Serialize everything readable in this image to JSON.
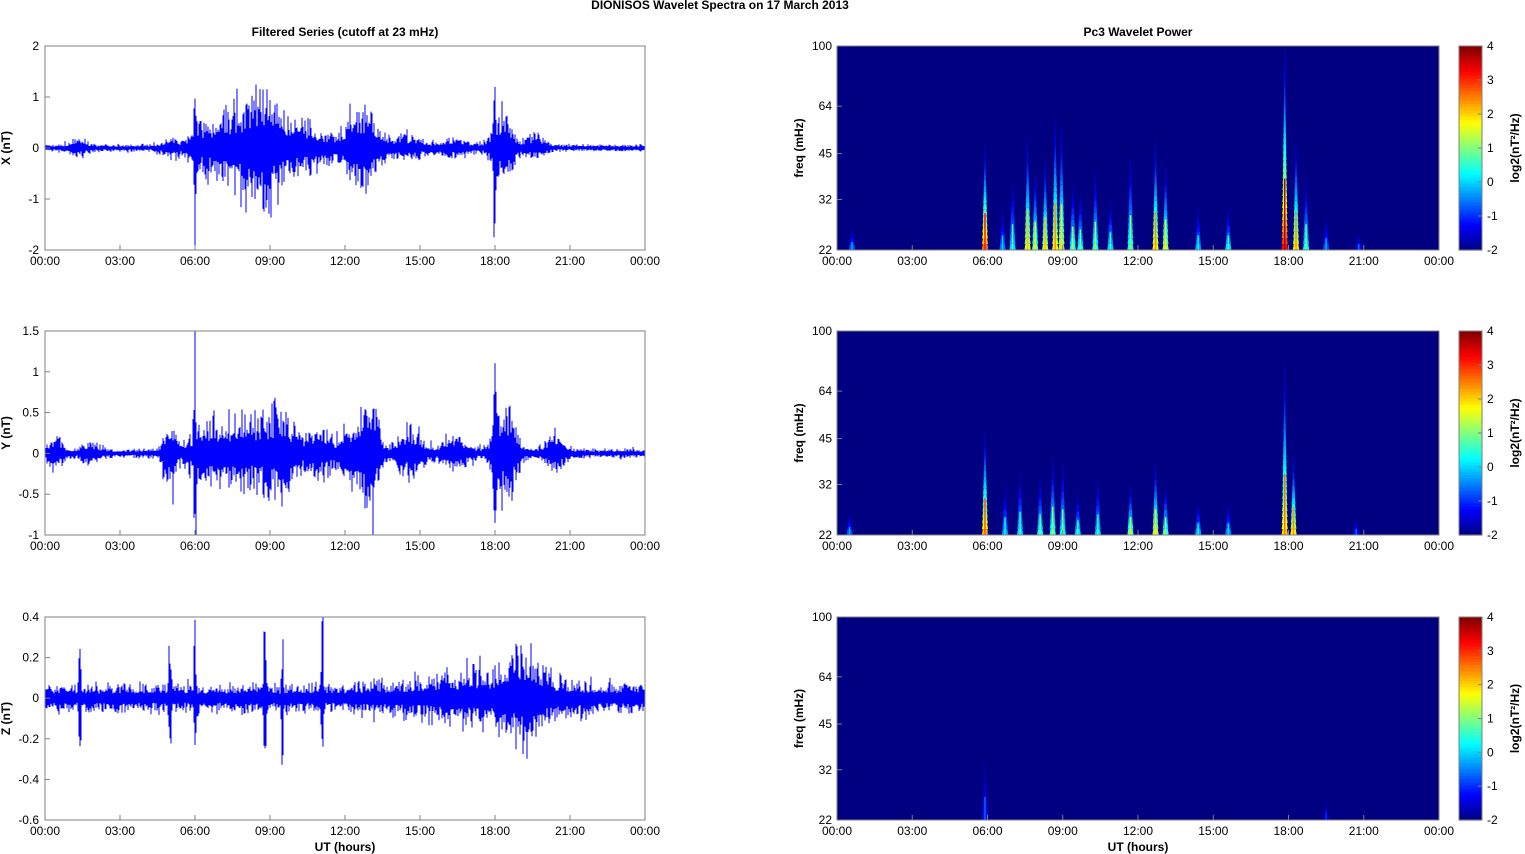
{
  "figure": {
    "title": "DIONISOS Wavelet Spectra on 17 March     2013"
  },
  "chart_data": [
    {
      "type": "line",
      "title": "Filtered Series (cutoff at 23 mHz)",
      "ylabel": "X (nT)",
      "xlabel": "",
      "color": "#0000ff",
      "xlim": [
        "00:00",
        "24:00"
      ],
      "xticks": [
        "00:00",
        "03:00",
        "06:00",
        "09:00",
        "12:00",
        "15:00",
        "18:00",
        "21:00",
        "00:00"
      ],
      "ylim": [
        -2,
        2
      ],
      "yticks": [
        "2",
        "1",
        "0",
        "-1",
        "-2"
      ],
      "yticks_values": [
        2,
        1,
        0,
        -1,
        -2
      ],
      "noise_floor": 0.05,
      "activity": [
        {
          "t": 1.3,
          "w": 0.4,
          "amp": 0.1
        },
        {
          "t": 5.0,
          "w": 0.4,
          "amp": 0.12
        },
        {
          "t": 6.0,
          "w": 0.05,
          "amp": 1.35
        },
        {
          "t": 6.3,
          "w": 0.6,
          "amp": 0.3
        },
        {
          "t": 7.6,
          "w": 0.8,
          "amp": 0.55
        },
        {
          "t": 8.7,
          "w": 0.6,
          "amp": 0.7
        },
        {
          "t": 9.5,
          "w": 0.8,
          "amp": 0.35
        },
        {
          "t": 10.7,
          "w": 0.9,
          "amp": 0.25
        },
        {
          "t": 12.4,
          "w": 0.6,
          "amp": 0.45
        },
        {
          "t": 13.1,
          "w": 0.5,
          "amp": 0.35
        },
        {
          "t": 14.5,
          "w": 0.8,
          "amp": 0.15
        },
        {
          "t": 16.4,
          "w": 0.6,
          "amp": 0.12
        },
        {
          "t": 17.98,
          "w": 0.05,
          "amp": 1.95
        },
        {
          "t": 18.3,
          "w": 0.5,
          "amp": 0.5
        },
        {
          "t": 19.6,
          "w": 0.5,
          "amp": 0.12
        }
      ]
    },
    {
      "type": "heatmap",
      "title": "Pc3 Wavelet Power",
      "ylabel": "freq (mHz)",
      "xlabel": "",
      "xlim": [
        "00:00",
        "24:00"
      ],
      "xticks": [
        "00:00",
        "03:00",
        "06:00",
        "09:00",
        "12:00",
        "15:00",
        "18:00",
        "21:00",
        "00:00"
      ],
      "ylim": [
        22,
        100
      ],
      "yscale": "log",
      "yticks": [
        "100",
        "64",
        "45",
        "32",
        "22"
      ],
      "yticks_values": [
        100,
        64,
        45,
        32,
        22
      ],
      "colorbar_label": "log2(nT²/Hz)",
      "colorbar_ticks": [
        "4",
        "3",
        "2",
        "1",
        "0",
        "-1",
        "-2"
      ],
      "colorbar_ticks_values": [
        4,
        3,
        2,
        1,
        0,
        -1,
        -2
      ],
      "clim": [
        -2,
        4
      ],
      "colormap": "jet",
      "background_value": -2,
      "bursts": [
        {
          "t": 0.6,
          "top": 26,
          "peak": -0.8
        },
        {
          "t": 5.9,
          "top": 48,
          "peak": 2.6
        },
        {
          "t": 6.6,
          "top": 30,
          "peak": -0.6
        },
        {
          "t": 7.0,
          "top": 38,
          "peak": 0.0
        },
        {
          "t": 7.6,
          "top": 52,
          "peak": 1.5
        },
        {
          "t": 7.9,
          "top": 40,
          "peak": 1.0
        },
        {
          "t": 8.3,
          "top": 44,
          "peak": 1.5
        },
        {
          "t": 8.7,
          "top": 60,
          "peak": 1.8
        },
        {
          "t": 8.95,
          "top": 58,
          "peak": 1.3
        },
        {
          "t": 9.4,
          "top": 36,
          "peak": 0.5
        },
        {
          "t": 9.7,
          "top": 34,
          "peak": 0.3
        },
        {
          "t": 10.3,
          "top": 40,
          "peak": 0.5
        },
        {
          "t": 10.9,
          "top": 32,
          "peak": 0.0
        },
        {
          "t": 11.7,
          "top": 46,
          "peak": 0.5
        },
        {
          "t": 12.7,
          "top": 50,
          "peak": 1.8
        },
        {
          "t": 13.1,
          "top": 42,
          "peak": 1.2
        },
        {
          "t": 14.4,
          "top": 30,
          "peak": -0.3
        },
        {
          "t": 15.6,
          "top": 30,
          "peak": 0.0
        },
        {
          "t": 17.85,
          "top": 100,
          "peak": 3.2
        },
        {
          "t": 18.3,
          "top": 50,
          "peak": 1.8
        },
        {
          "t": 18.7,
          "top": 38,
          "peak": 0.3
        },
        {
          "t": 19.5,
          "top": 28,
          "peak": -0.8
        },
        {
          "t": 20.8,
          "top": 25,
          "peak": -1.2
        }
      ]
    },
    {
      "type": "line",
      "title": "",
      "ylabel": "Y (nT)",
      "xlabel": "",
      "color": "#0000ff",
      "xlim": [
        "00:00",
        "24:00"
      ],
      "xticks": [
        "00:00",
        "03:00",
        "06:00",
        "09:00",
        "12:00",
        "15:00",
        "18:00",
        "21:00",
        "00:00"
      ],
      "ylim": [
        -1,
        1.5
      ],
      "yticks": [
        "1.5",
        "1",
        "0.5",
        "0",
        "-0.5",
        "-1"
      ],
      "yticks_values": [
        1.5,
        1,
        0.5,
        0,
        -0.5,
        -1
      ],
      "noise_floor": 0.04,
      "activity": [
        {
          "t": 0.4,
          "w": 0.4,
          "amp": 0.12
        },
        {
          "t": 1.8,
          "w": 0.4,
          "amp": 0.08
        },
        {
          "t": 5.0,
          "w": 0.3,
          "amp": 0.3
        },
        {
          "t": 6.0,
          "w": 0.05,
          "amp": 1.05
        },
        {
          "t": 6.4,
          "w": 0.7,
          "amp": 0.25
        },
        {
          "t": 7.8,
          "w": 1.0,
          "amp": 0.3
        },
        {
          "t": 9.4,
          "w": 0.8,
          "amp": 0.35
        },
        {
          "t": 11.0,
          "w": 0.6,
          "amp": 0.2
        },
        {
          "t": 12.4,
          "w": 0.6,
          "amp": 0.25
        },
        {
          "t": 13.0,
          "w": 0.4,
          "amp": 0.5
        },
        {
          "t": 14.6,
          "w": 0.6,
          "amp": 0.2
        },
        {
          "t": 16.4,
          "w": 0.6,
          "amp": 0.15
        },
        {
          "t": 17.98,
          "w": 0.05,
          "amp": 0.75
        },
        {
          "t": 18.4,
          "w": 0.5,
          "amp": 0.45
        },
        {
          "t": 20.4,
          "w": 0.5,
          "amp": 0.15
        }
      ]
    },
    {
      "type": "heatmap",
      "title": "",
      "ylabel": "freq (mHz)",
      "xlabel": "",
      "xlim": [
        "00:00",
        "24:00"
      ],
      "xticks": [
        "00:00",
        "03:00",
        "06:00",
        "09:00",
        "12:00",
        "15:00",
        "18:00",
        "21:00",
        "00:00"
      ],
      "ylim": [
        22,
        100
      ],
      "yscale": "log",
      "yticks": [
        "100",
        "64",
        "45",
        "32",
        "22"
      ],
      "yticks_values": [
        100,
        64,
        45,
        32,
        22
      ],
      "colorbar_label": "log2(nT²/Hz)",
      "colorbar_ticks": [
        "4",
        "3",
        "2",
        "1",
        "0",
        "-1",
        "-2"
      ],
      "colorbar_ticks_values": [
        4,
        3,
        2,
        1,
        0,
        -1,
        -2
      ],
      "clim": [
        -2,
        4
      ],
      "colormap": "jet",
      "background_value": -2,
      "bursts": [
        {
          "t": 0.5,
          "top": 26,
          "peak": -0.8
        },
        {
          "t": 5.9,
          "top": 48,
          "peak": 2.2
        },
        {
          "t": 6.7,
          "top": 32,
          "peak": -0.3
        },
        {
          "t": 7.3,
          "top": 36,
          "peak": 0.0
        },
        {
          "t": 8.1,
          "top": 34,
          "peak": 0.3
        },
        {
          "t": 8.6,
          "top": 40,
          "peak": 0.5
        },
        {
          "t": 9.0,
          "top": 38,
          "peak": 0.3
        },
        {
          "t": 9.6,
          "top": 30,
          "peak": 0.0
        },
        {
          "t": 10.4,
          "top": 34,
          "peak": 0.0
        },
        {
          "t": 11.7,
          "top": 32,
          "peak": 0.8
        },
        {
          "t": 12.7,
          "top": 38,
          "peak": 1.3
        },
        {
          "t": 13.1,
          "top": 32,
          "peak": 0.5
        },
        {
          "t": 14.4,
          "top": 28,
          "peak": -0.3
        },
        {
          "t": 15.6,
          "top": 28,
          "peak": -0.5
        },
        {
          "t": 17.85,
          "top": 80,
          "peak": 2.0
        },
        {
          "t": 18.2,
          "top": 40,
          "peak": 1.8
        },
        {
          "t": 20.7,
          "top": 25,
          "peak": -1.2
        }
      ]
    },
    {
      "type": "line",
      "title": "",
      "ylabel": "Z (nT)",
      "xlabel": "UT (hours)",
      "color": "#0000ff",
      "xlim": [
        "00:00",
        "24:00"
      ],
      "xticks": [
        "00:00",
        "03:00",
        "06:00",
        "09:00",
        "12:00",
        "15:00",
        "18:00",
        "21:00",
        "00:00"
      ],
      "ylim": [
        -0.6,
        0.4
      ],
      "yticks": [
        "0.4",
        "0.2",
        "0",
        "-0.2",
        "-0.4",
        "-0.6"
      ],
      "yticks_values": [
        0.4,
        0.2,
        0,
        -0.2,
        -0.4,
        -0.6
      ],
      "noise_floor": 0.05,
      "activity": [
        {
          "t": 1.4,
          "w": 0.05,
          "amp": 0.22
        },
        {
          "t": 5.0,
          "w": 0.05,
          "amp": 0.25
        },
        {
          "t": 6.0,
          "w": 0.05,
          "amp": 0.38
        },
        {
          "t": 8.8,
          "w": 0.04,
          "amp": 0.48
        },
        {
          "t": 9.5,
          "w": 0.04,
          "amp": 0.32
        },
        {
          "t": 11.1,
          "w": 0.04,
          "amp": 0.45
        },
        {
          "t": 17.5,
          "w": 3.0,
          "amp": 0.05
        },
        {
          "t": 19.2,
          "w": 0.8,
          "amp": 0.1
        }
      ]
    },
    {
      "type": "heatmap",
      "title": "",
      "ylabel": "freq (mHz)",
      "xlabel": "UT (hours)",
      "xlim": [
        "00:00",
        "24:00"
      ],
      "xticks": [
        "00:00",
        "03:00",
        "06:00",
        "09:00",
        "12:00",
        "15:00",
        "18:00",
        "21:00",
        "00:00"
      ],
      "ylim": [
        22,
        100
      ],
      "yscale": "log",
      "yticks": [
        "100",
        "64",
        "45",
        "32",
        "22"
      ],
      "yticks_values": [
        100,
        64,
        45,
        32,
        22
      ],
      "colorbar_label": "log2(nT²/Hz)",
      "colorbar_ticks": [
        "4",
        "3",
        "2",
        "1",
        "0",
        "-1",
        "-2"
      ],
      "colorbar_ticks_values": [
        4,
        3,
        2,
        1,
        0,
        -1,
        -2
      ],
      "clim": [
        -2,
        4
      ],
      "colormap": "jet",
      "background_value": -2,
      "bursts": [
        {
          "t": 5.9,
          "top": 36,
          "peak": -1.2
        },
        {
          "t": 19.5,
          "top": 26,
          "peak": -1.6
        }
      ]
    }
  ]
}
